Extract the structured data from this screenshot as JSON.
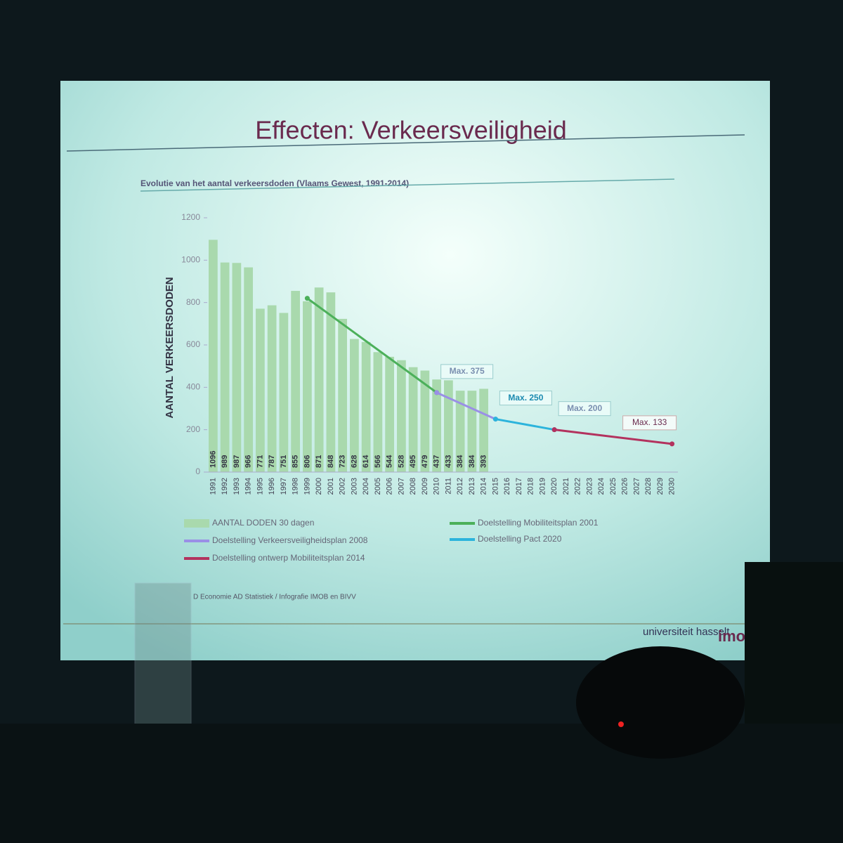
{
  "slide": {
    "title": "Effecten: Verkeersveiligheid",
    "logo": "universiteit hasselt",
    "logo_mark": "imob"
  },
  "chart_data": {
    "type": "bar",
    "title": "Evolutie van het aantal verkeersdoden (Vlaams Gewest, 1991-2014)",
    "ylabel": "AANTAL VERKEERSDODEN",
    "categories": [
      "1991",
      "1992",
      "1993",
      "1994",
      "1995",
      "1996",
      "1997",
      "1998",
      "1999",
      "2000",
      "2001",
      "2002",
      "2003",
      "2004",
      "2005",
      "2006",
      "2007",
      "2008",
      "2009",
      "2010",
      "2011",
      "2012",
      "2013",
      "2014",
      "2015",
      "2016",
      "2017",
      "2018",
      "2019",
      "2020",
      "2021",
      "2022",
      "2023",
      "2024",
      "2025",
      "2026",
      "2027",
      "2028",
      "2029",
      "2030"
    ],
    "values": [
      1096,
      989,
      987,
      966,
      771,
      787,
      751,
      855,
      806,
      871,
      848,
      723,
      628,
      614,
      566,
      544,
      528,
      495,
      479,
      437,
      433,
      384,
      384,
      393,
      null,
      null,
      null,
      null,
      null,
      null,
      null,
      null,
      null,
      null,
      null,
      null,
      null,
      null,
      null,
      null
    ],
    "bar_name": "AANTAL DODEN 30 dagen",
    "color": "#a9d9ad",
    "series": [
      {
        "name": "Doelstelling Mobiliteitsplan 2001",
        "color": "#4cb05a",
        "x": [
          "1999",
          "2010"
        ],
        "values": [
          820,
          375
        ]
      },
      {
        "name": "Doelstelling Verkeersveiligheidsplan 2008",
        "color": "#9a8fe6",
        "x": [
          "2010",
          "2015"
        ],
        "values": [
          375,
          250
        ],
        "annotation": "Max. 375"
      },
      {
        "name": "Doelstelling Pact 2020",
        "color": "#2cb4dc",
        "x": [
          "2015",
          "2020"
        ],
        "values": [
          250,
          200
        ],
        "annotation": "Max. 250"
      },
      {
        "name": "Doelstelling ontwerp Mobiliteitsplan 2014",
        "color": "#b3325e",
        "x": [
          "2020",
          "2030"
        ],
        "values": [
          200,
          133
        ],
        "annotation": "Max. 200"
      }
    ],
    "end_annotation": "Max. 133",
    "ylim": [
      0,
      1200
    ],
    "yticks": [
      0,
      200,
      400,
      600,
      800,
      1000,
      1200
    ],
    "source": "D Economie AD Statistiek / Infografie IMOB en BIVV"
  }
}
